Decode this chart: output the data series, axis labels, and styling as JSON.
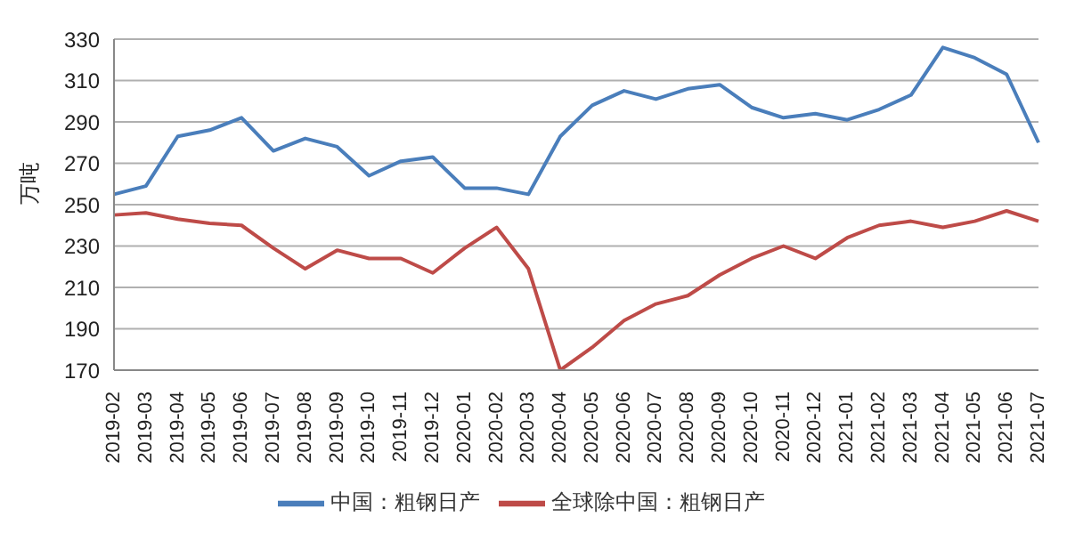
{
  "chart_data": {
    "type": "line",
    "ylabel": "万吨",
    "categories": [
      "2019-02",
      "2019-03",
      "2019-04",
      "2019-05",
      "2019-06",
      "2019-07",
      "2019-08",
      "2019-09",
      "2019-10",
      "2019-11",
      "2019-12",
      "2020-01",
      "2020-02",
      "2020-03",
      "2020-04",
      "2020-05",
      "2020-06",
      "2020-07",
      "2020-08",
      "2020-09",
      "2020-10",
      "2020-11",
      "2020-12",
      "2021-01",
      "2021-02",
      "2021-03",
      "2021-04",
      "2021-05",
      "2021-06",
      "2021-07"
    ],
    "series": [
      {
        "name": "中国：粗钢日产",
        "color": "#4a7ebb",
        "values": [
          255,
          259,
          283,
          286,
          292,
          276,
          282,
          278,
          264,
          271,
          273,
          258,
          258,
          255,
          283,
          298,
          305,
          301,
          306,
          308,
          297,
          292,
          294,
          291,
          296,
          303,
          326,
          321,
          313,
          280
        ]
      },
      {
        "name": "全球除中国：粗钢日产",
        "color": "#be4b48",
        "values": [
          245,
          246,
          243,
          241,
          240,
          229,
          219,
          228,
          224,
          224,
          217,
          229,
          239,
          219,
          170,
          181,
          194,
          202,
          206,
          216,
          224,
          230,
          224,
          234,
          240,
          242,
          239,
          242,
          247,
          242
        ]
      }
    ],
    "ylim": [
      170,
      330
    ],
    "yticks": [
      170,
      190,
      210,
      230,
      250,
      270,
      290,
      310,
      330
    ],
    "grid": "y",
    "legend": "bottom",
    "marker": "none",
    "line_style": "solid"
  }
}
